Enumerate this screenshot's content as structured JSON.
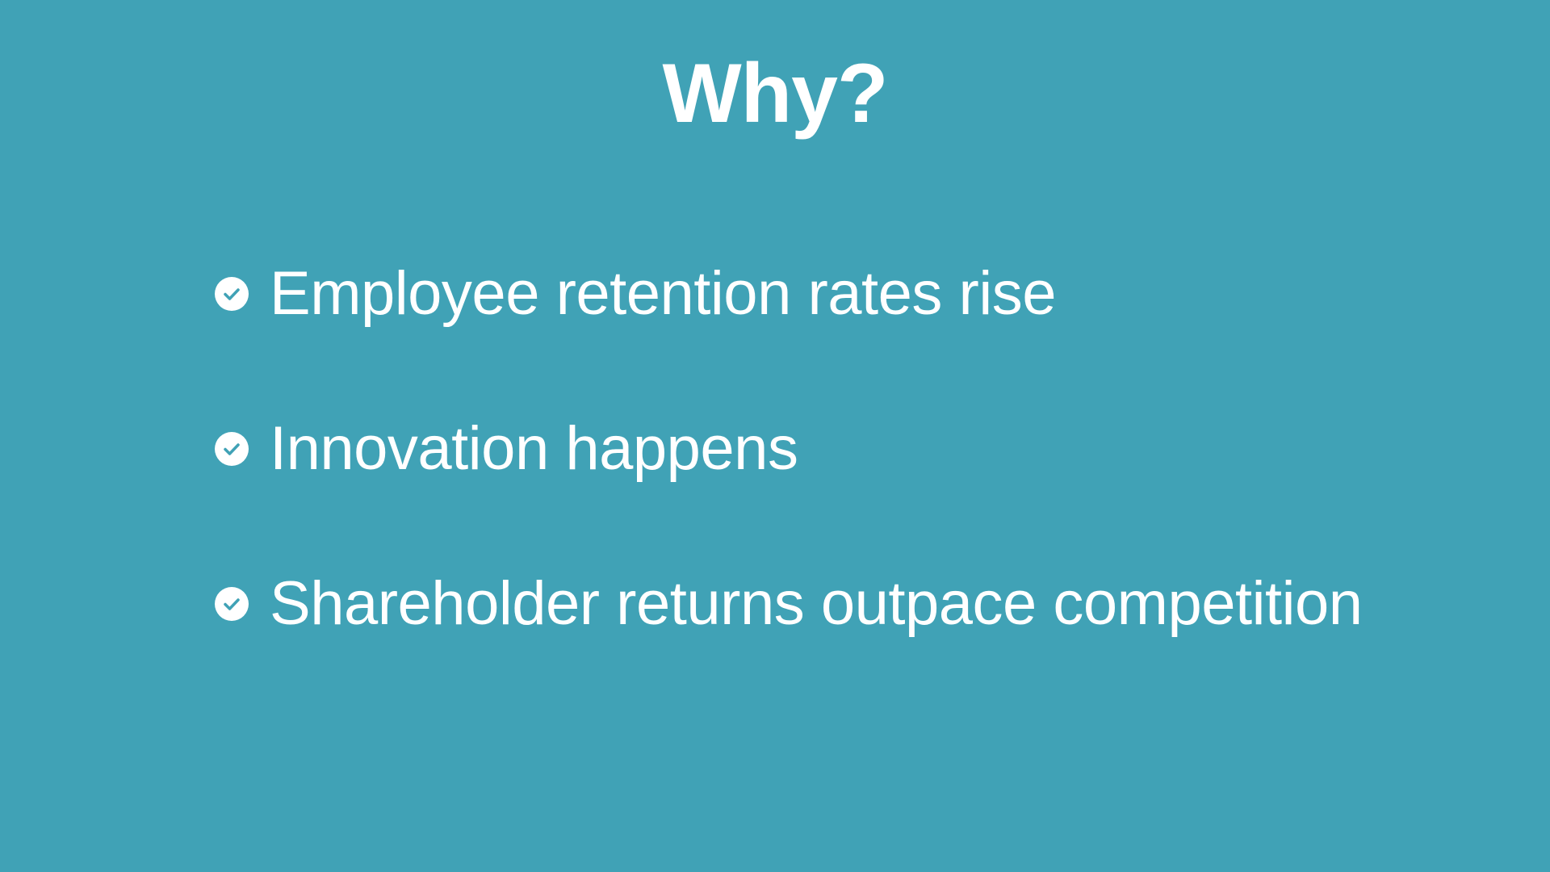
{
  "slide": {
    "title": "Why?",
    "bullets": [
      {
        "icon": "check-circle-icon",
        "text": "Employee retention rates rise"
      },
      {
        "icon": "check-circle-icon",
        "text": "Innovation happens"
      },
      {
        "icon": "check-circle-icon",
        "text": "Shareholder returns outpace competition"
      }
    ]
  },
  "colors": {
    "background": "#40a2b6",
    "text": "#ffffff"
  }
}
